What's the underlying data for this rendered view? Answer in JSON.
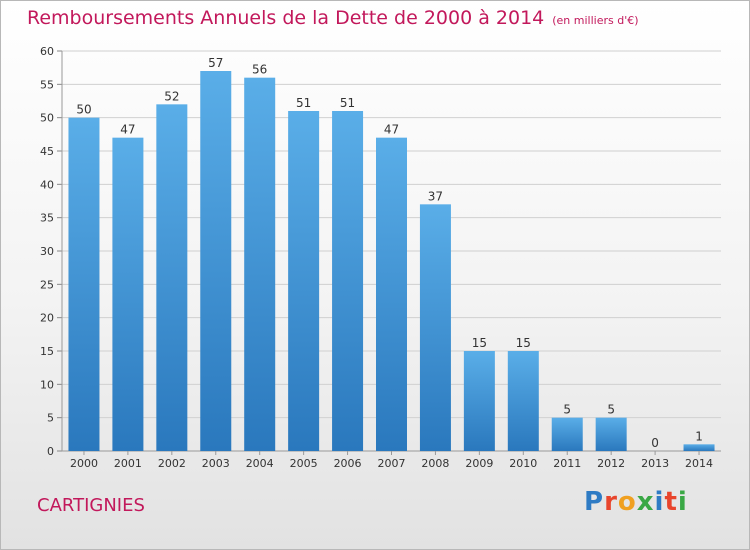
{
  "title": "Remboursements Annuels de la Dette de 2000 à 2014",
  "unit": "(en milliers d'€)",
  "commune": "CARTIGNIES",
  "logo": {
    "text": "Proxiti",
    "colors": [
      "#2e7bc4",
      "#e8452c",
      "#f0a020",
      "#3aa845",
      "#2e7bc4",
      "#e8452c",
      "#3aa845"
    ]
  },
  "colors": {
    "bar_top": "#5aaee8",
    "bar_bottom": "#2a78bd",
    "title": "#c2185b"
  },
  "chart_data": {
    "type": "bar",
    "title": "Remboursements Annuels de la Dette de 2000 à 2014",
    "categories": [
      "2000",
      "2001",
      "2002",
      "2003",
      "2004",
      "2005",
      "2006",
      "2007",
      "2008",
      "2009",
      "2010",
      "2011",
      "2012",
      "2013",
      "2014"
    ],
    "values": [
      50,
      47,
      52,
      57,
      56,
      51,
      51,
      47,
      37,
      15,
      15,
      5,
      5,
      0,
      1
    ],
    "ylim": [
      0,
      60
    ],
    "yticks": [
      0,
      5,
      10,
      15,
      20,
      25,
      30,
      35,
      40,
      45,
      50,
      55,
      60
    ],
    "grid": true,
    "data_labels": true
  }
}
